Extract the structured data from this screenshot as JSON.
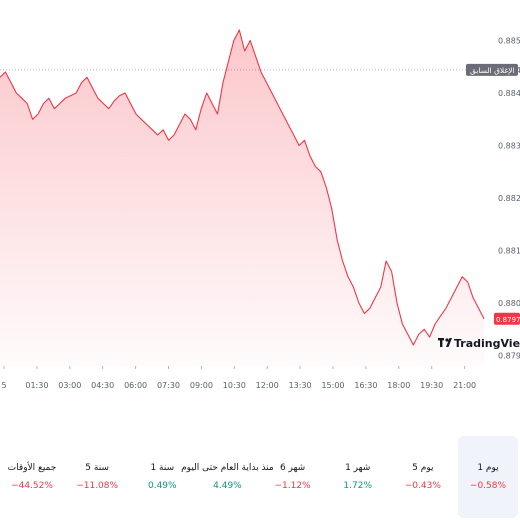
{
  "chart_data": {
    "type": "area",
    "x_ticks": [
      "5",
      "01:30",
      "03:00",
      "04:30",
      "06:00",
      "07:30",
      "09:00",
      "10:30",
      "12:00",
      "13:30",
      "15:00",
      "16:30",
      "18:00",
      "19:30",
      "21:00"
    ],
    "y_ticks": [
      "0.88500",
      "0.88444",
      "0.88400",
      "0.88300",
      "0.88200",
      "0.88100",
      "0.88000",
      "0.87900"
    ],
    "ylim": [
      0.8788,
      0.8852
    ],
    "series": [
      {
        "values": [
          0.8843,
          0.8844,
          0.8842,
          0.884,
          0.8839,
          0.8838,
          0.8835,
          0.8836,
          0.8838,
          0.8839,
          0.8837,
          0.8838,
          0.8839,
          0.88395,
          0.884,
          0.8842,
          0.8843,
          0.8841,
          0.8839,
          0.8838,
          0.8837,
          0.88385,
          0.88395,
          0.884,
          0.8838,
          0.8836,
          0.8835,
          0.8834,
          0.8833,
          0.8832,
          0.8833,
          0.8831,
          0.8832,
          0.8834,
          0.8836,
          0.8835,
          0.8833,
          0.8837,
          0.884,
          0.8838,
          0.8836,
          0.8842,
          0.8846,
          0.885,
          0.8852,
          0.8848,
          0.885,
          0.8847,
          0.8844,
          0.8842,
          0.884,
          0.8838,
          0.8836,
          0.8834,
          0.8832,
          0.883,
          0.8831,
          0.8828,
          0.8826,
          0.8825,
          0.8822,
          0.8818,
          0.8812,
          0.8808,
          0.8805,
          0.8803,
          0.88,
          0.8798,
          0.8799,
          0.8801,
          0.8803,
          0.8808,
          0.8806,
          0.88,
          0.8796,
          0.8794,
          0.8792,
          0.8794,
          0.8795,
          0.87935,
          0.8796,
          0.87975,
          0.8799,
          0.8801,
          0.8803,
          0.8805,
          0.8804,
          0.8801,
          0.8799,
          0.8797
        ],
        "last_value": "0.87970"
      }
    ],
    "reference_line": {
      "label": "الإغلاق السابق",
      "value": 0.88444
    },
    "watermark": "TradingView"
  },
  "periods": [
    {
      "label": "1 يوم",
      "change": "−0.58%",
      "direction": "negative",
      "active": true
    },
    {
      "label": "5 يوم",
      "change": "−0.43%",
      "direction": "negative",
      "active": false
    },
    {
      "label": "1 شهر",
      "change": "1.72%",
      "direction": "positive",
      "active": false
    },
    {
      "label": "6 شهر",
      "change": "−1.12%",
      "direction": "negative",
      "active": false
    },
    {
      "label": "منذ بداية العام حتى اليوم",
      "change": "4.49%",
      "direction": "positive",
      "active": false
    },
    {
      "label": "1 سنة",
      "change": "0.49%",
      "direction": "positive",
      "active": false
    },
    {
      "label": "5 سنة",
      "change": "−11.08%",
      "direction": "negative",
      "active": false
    },
    {
      "label": "جميع الأوقات",
      "change": "−44.52%",
      "direction": "negative",
      "active": false
    }
  ],
  "colors": {
    "line": "#f23645",
    "positive": "#089981",
    "negative": "#f23645",
    "ref_tag": "#6a6d78",
    "active_bg": "#f0f3fa"
  }
}
